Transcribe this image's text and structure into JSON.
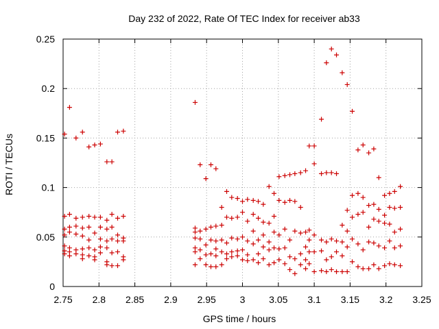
{
  "chart_data": {
    "type": "scatter",
    "title": "Day 232 of 2022, Rate Of TEC Index for receiver ab33",
    "xlabel": "GPS time / hours",
    "ylabel": "ROTI / TECUs",
    "xlim": [
      2.75,
      3.25
    ],
    "ylim": [
      0,
      0.25
    ],
    "xticks": [
      "2.75",
      "2.8",
      "2.85",
      "2.9",
      "2.95",
      "3",
      "3.05",
      "3.1",
      "3.15",
      "3.2",
      "3.25"
    ],
    "yticks": [
      "0",
      "0.05",
      "0.1",
      "0.15",
      "0.2",
      "0.25"
    ],
    "grid": true,
    "marker": "+",
    "color": "#cc0000",
    "points": [
      [
        2.752,
        0.154
      ],
      [
        2.752,
        0.071
      ],
      [
        2.752,
        0.058
      ],
      [
        2.752,
        0.052
      ],
      [
        2.752,
        0.041
      ],
      [
        2.752,
        0.036
      ],
      [
        2.752,
        0.033
      ],
      [
        2.759,
        0.181
      ],
      [
        2.759,
        0.073
      ],
      [
        2.759,
        0.06
      ],
      [
        2.759,
        0.055
      ],
      [
        2.759,
        0.039
      ],
      [
        2.759,
        0.035
      ],
      [
        2.759,
        0.031
      ],
      [
        2.768,
        0.15
      ],
      [
        2.768,
        0.069
      ],
      [
        2.768,
        0.061
      ],
      [
        2.768,
        0.053
      ],
      [
        2.768,
        0.037
      ],
      [
        2.768,
        0.033
      ],
      [
        2.777,
        0.156
      ],
      [
        2.777,
        0.07
      ],
      [
        2.777,
        0.059
      ],
      [
        2.777,
        0.051
      ],
      [
        2.777,
        0.038
      ],
      [
        2.777,
        0.032
      ],
      [
        2.777,
        0.028
      ],
      [
        2.786,
        0.141
      ],
      [
        2.786,
        0.071
      ],
      [
        2.786,
        0.06
      ],
      [
        2.786,
        0.047
      ],
      [
        2.786,
        0.039
      ],
      [
        2.786,
        0.031
      ],
      [
        2.794,
        0.143
      ],
      [
        2.794,
        0.07
      ],
      [
        2.794,
        0.054
      ],
      [
        2.794,
        0.037
      ],
      [
        2.794,
        0.03
      ],
      [
        2.794,
        0.027
      ],
      [
        2.802,
        0.144
      ],
      [
        2.802,
        0.07
      ],
      [
        2.802,
        0.06
      ],
      [
        2.802,
        0.048
      ],
      [
        2.802,
        0.04
      ],
      [
        2.802,
        0.034
      ],
      [
        2.811,
        0.126
      ],
      [
        2.811,
        0.067
      ],
      [
        2.811,
        0.058
      ],
      [
        2.811,
        0.046
      ],
      [
        2.811,
        0.039
      ],
      [
        2.811,
        0.025
      ],
      [
        2.811,
        0.022
      ],
      [
        2.818,
        0.126
      ],
      [
        2.818,
        0.073
      ],
      [
        2.818,
        0.06
      ],
      [
        2.818,
        0.048
      ],
      [
        2.818,
        0.034
      ],
      [
        2.818,
        0.021
      ],
      [
        2.826,
        0.156
      ],
      [
        2.826,
        0.069
      ],
      [
        2.826,
        0.052
      ],
      [
        2.826,
        0.046
      ],
      [
        2.826,
        0.035
      ],
      [
        2.826,
        0.021
      ],
      [
        2.834,
        0.157
      ],
      [
        2.834,
        0.071
      ],
      [
        2.834,
        0.049
      ],
      [
        2.834,
        0.046
      ],
      [
        2.834,
        0.03
      ],
      [
        2.834,
        0.027
      ],
      [
        2.934,
        0.186
      ],
      [
        2.934,
        0.059
      ],
      [
        2.934,
        0.055
      ],
      [
        2.934,
        0.049
      ],
      [
        2.934,
        0.039
      ],
      [
        2.934,
        0.035
      ],
      [
        2.934,
        0.022
      ],
      [
        2.941,
        0.123
      ],
      [
        2.941,
        0.056
      ],
      [
        2.941,
        0.048
      ],
      [
        2.941,
        0.037
      ],
      [
        2.941,
        0.028
      ],
      [
        2.949,
        0.109
      ],
      [
        2.949,
        0.058
      ],
      [
        2.949,
        0.042
      ],
      [
        2.949,
        0.032
      ],
      [
        2.949,
        0.022
      ],
      [
        2.956,
        0.123
      ],
      [
        2.956,
        0.06
      ],
      [
        2.956,
        0.047
      ],
      [
        2.956,
        0.033
      ],
      [
        2.956,
        0.02
      ],
      [
        2.963,
        0.119
      ],
      [
        2.963,
        0.061
      ],
      [
        2.963,
        0.046
      ],
      [
        2.963,
        0.038
      ],
      [
        2.963,
        0.031
      ],
      [
        2.963,
        0.02
      ],
      [
        2.971,
        0.08
      ],
      [
        2.971,
        0.062
      ],
      [
        2.971,
        0.047
      ],
      [
        2.971,
        0.035
      ],
      [
        2.971,
        0.022
      ],
      [
        2.978,
        0.096
      ],
      [
        2.978,
        0.07
      ],
      [
        2.978,
        0.044
      ],
      [
        2.978,
        0.033
      ],
      [
        2.978,
        0.028
      ],
      [
        2.985,
        0.09
      ],
      [
        2.985,
        0.069
      ],
      [
        2.985,
        0.049
      ],
      [
        2.985,
        0.035
      ],
      [
        2.985,
        0.03
      ],
      [
        2.993,
        0.089
      ],
      [
        2.993,
        0.07
      ],
      [
        2.993,
        0.048
      ],
      [
        2.993,
        0.036
      ],
      [
        2.993,
        0.031
      ],
      [
        3.0,
        0.086
      ],
      [
        3.0,
        0.075
      ],
      [
        3.0,
        0.05
      ],
      [
        3.0,
        0.037
      ],
      [
        3.0,
        0.027
      ],
      [
        3.007,
        0.088
      ],
      [
        3.007,
        0.066
      ],
      [
        3.007,
        0.046
      ],
      [
        3.007,
        0.032
      ],
      [
        3.007,
        0.026
      ],
      [
        3.015,
        0.087
      ],
      [
        3.015,
        0.073
      ],
      [
        3.015,
        0.056
      ],
      [
        3.015,
        0.043
      ],
      [
        3.015,
        0.027
      ],
      [
        3.022,
        0.086
      ],
      [
        3.022,
        0.069
      ],
      [
        3.022,
        0.047
      ],
      [
        3.022,
        0.033
      ],
      [
        3.022,
        0.024
      ],
      [
        3.029,
        0.083
      ],
      [
        3.029,
        0.065
      ],
      [
        3.029,
        0.052
      ],
      [
        3.029,
        0.04
      ],
      [
        3.029,
        0.028
      ],
      [
        3.037,
        0.101
      ],
      [
        3.037,
        0.064
      ],
      [
        3.037,
        0.045
      ],
      [
        3.037,
        0.037
      ],
      [
        3.037,
        0.022
      ],
      [
        3.044,
        0.094
      ],
      [
        3.044,
        0.071
      ],
      [
        3.044,
        0.055
      ],
      [
        3.044,
        0.039
      ],
      [
        3.044,
        0.024
      ],
      [
        3.051,
        0.111
      ],
      [
        3.051,
        0.087
      ],
      [
        3.051,
        0.052
      ],
      [
        3.051,
        0.038
      ],
      [
        3.051,
        0.027
      ],
      [
        3.059,
        0.112
      ],
      [
        3.059,
        0.085
      ],
      [
        3.059,
        0.058
      ],
      [
        3.059,
        0.039
      ],
      [
        3.059,
        0.023
      ],
      [
        3.066,
        0.113
      ],
      [
        3.066,
        0.087
      ],
      [
        3.066,
        0.047
      ],
      [
        3.066,
        0.03
      ],
      [
        3.066,
        0.017
      ],
      [
        3.073,
        0.114
      ],
      [
        3.073,
        0.086
      ],
      [
        3.073,
        0.056
      ],
      [
        3.073,
        0.028
      ],
      [
        3.073,
        0.013
      ],
      [
        3.081,
        0.115
      ],
      [
        3.081,
        0.08
      ],
      [
        3.081,
        0.054
      ],
      [
        3.081,
        0.033
      ],
      [
        3.081,
        0.022
      ],
      [
        3.088,
        0.117
      ],
      [
        3.088,
        0.055
      ],
      [
        3.088,
        0.04
      ],
      [
        3.088,
        0.027
      ],
      [
        3.088,
        0.018
      ],
      [
        3.093,
        0.142
      ],
      [
        3.093,
        0.057
      ],
      [
        3.093,
        0.047
      ],
      [
        3.093,
        0.035
      ],
      [
        3.093,
        0.023
      ],
      [
        3.1,
        0.142
      ],
      [
        3.1,
        0.124
      ],
      [
        3.1,
        0.052
      ],
      [
        3.1,
        0.035
      ],
      [
        3.1,
        0.015
      ],
      [
        3.11,
        0.169
      ],
      [
        3.11,
        0.114
      ],
      [
        3.11,
        0.047
      ],
      [
        3.11,
        0.036
      ],
      [
        3.11,
        0.016
      ],
      [
        3.117,
        0.226
      ],
      [
        3.117,
        0.115
      ],
      [
        3.117,
        0.045
      ],
      [
        3.117,
        0.027
      ],
      [
        3.117,
        0.015
      ],
      [
        3.124,
        0.24
      ],
      [
        3.124,
        0.115
      ],
      [
        3.124,
        0.048
      ],
      [
        3.124,
        0.03
      ],
      [
        3.124,
        0.017
      ],
      [
        3.131,
        0.234
      ],
      [
        3.131,
        0.114
      ],
      [
        3.131,
        0.046
      ],
      [
        3.131,
        0.035
      ],
      [
        3.131,
        0.015
      ],
      [
        3.139,
        0.216
      ],
      [
        3.139,
        0.062
      ],
      [
        3.139,
        0.045
      ],
      [
        3.139,
        0.031
      ],
      [
        3.139,
        0.015
      ],
      [
        3.146,
        0.204
      ],
      [
        3.146,
        0.077
      ],
      [
        3.146,
        0.056
      ],
      [
        3.146,
        0.04
      ],
      [
        3.146,
        0.015
      ],
      [
        3.153,
        0.177
      ],
      [
        3.153,
        0.092
      ],
      [
        3.153,
        0.07
      ],
      [
        3.153,
        0.048
      ],
      [
        3.153,
        0.025
      ],
      [
        3.161,
        0.138
      ],
      [
        3.161,
        0.094
      ],
      [
        3.161,
        0.073
      ],
      [
        3.161,
        0.043
      ],
      [
        3.161,
        0.02
      ],
      [
        3.168,
        0.143
      ],
      [
        3.168,
        0.09
      ],
      [
        3.168,
        0.075
      ],
      [
        3.168,
        0.037
      ],
      [
        3.168,
        0.018
      ],
      [
        3.176,
        0.135
      ],
      [
        3.176,
        0.082
      ],
      [
        3.176,
        0.06
      ],
      [
        3.176,
        0.045
      ],
      [
        3.176,
        0.018
      ],
      [
        3.183,
        0.139
      ],
      [
        3.183,
        0.083
      ],
      [
        3.183,
        0.068
      ],
      [
        3.183,
        0.044
      ],
      [
        3.183,
        0.022
      ],
      [
        3.19,
        0.11
      ],
      [
        3.19,
        0.078
      ],
      [
        3.19,
        0.066
      ],
      [
        3.19,
        0.041
      ],
      [
        3.19,
        0.018
      ],
      [
        3.198,
        0.092
      ],
      [
        3.198,
        0.072
      ],
      [
        3.198,
        0.064
      ],
      [
        3.198,
        0.039
      ],
      [
        3.198,
        0.021
      ],
      [
        3.205,
        0.094
      ],
      [
        3.205,
        0.08
      ],
      [
        3.205,
        0.063
      ],
      [
        3.205,
        0.046
      ],
      [
        3.205,
        0.023
      ],
      [
        3.212,
        0.096
      ],
      [
        3.212,
        0.079
      ],
      [
        3.212,
        0.055
      ],
      [
        3.212,
        0.039
      ],
      [
        3.212,
        0.022
      ],
      [
        3.22,
        0.101
      ],
      [
        3.22,
        0.08
      ],
      [
        3.22,
        0.058
      ],
      [
        3.22,
        0.041
      ],
      [
        3.22,
        0.021
      ]
    ]
  }
}
